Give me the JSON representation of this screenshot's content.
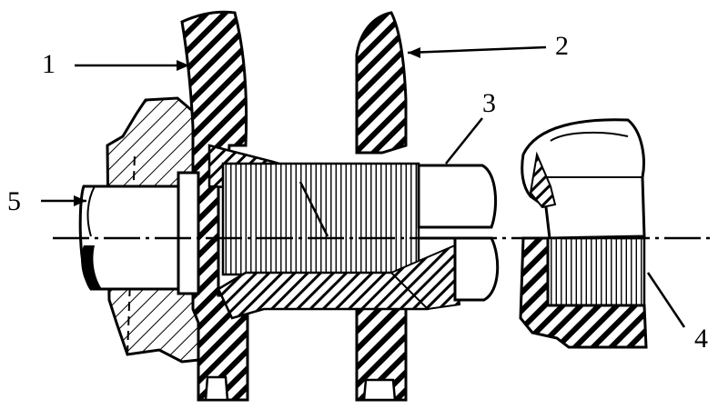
{
  "figure": {
    "title": "",
    "callouts": [
      {
        "id": "1",
        "text": "1"
      },
      {
        "id": "2",
        "text": "2"
      },
      {
        "id": "3",
        "text": "3"
      },
      {
        "id": "4",
        "text": "4"
      },
      {
        "id": "5",
        "text": "5"
      }
    ],
    "colors": {
      "ink": "#000000",
      "paper": "#ffffff"
    }
  }
}
